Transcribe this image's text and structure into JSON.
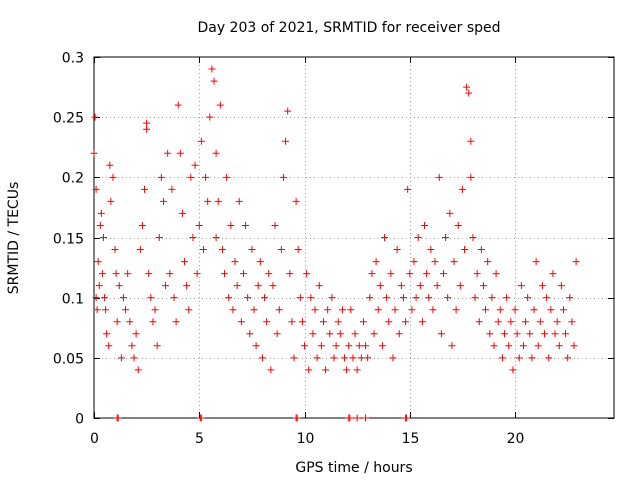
{
  "chart_data": {
    "type": "scatter",
    "title": "Day 203 of 2021, SRMTID for receiver sped",
    "xlabel": "GPS time / hours",
    "ylabel": "SRMTID / TECUs",
    "xlim": [
      0,
      24.7
    ],
    "ylim": [
      0,
      0.3
    ],
    "xticks": [
      0,
      5,
      10,
      15,
      20
    ],
    "xtick_labels": [
      "0",
      "5",
      "10",
      "15",
      "20"
    ],
    "yticks": [
      0,
      0.05,
      0.1,
      0.15,
      0.2,
      0.25,
      0.3
    ],
    "ytick_labels": [
      "0",
      "0.05",
      "0.1",
      "0.15",
      "0.2",
      "0.25",
      "0.3"
    ],
    "grid": true,
    "series": [
      {
        "name": "SRMTID",
        "color": "#ff0000",
        "marker": "plus",
        "x": [
          0.0,
          0.05,
          0.1,
          0.1,
          0.15,
          0.2,
          0.25,
          0.3,
          0.35,
          0.4,
          0.45,
          0.5,
          0.55,
          0.6,
          0.7,
          0.75,
          0.8,
          0.9,
          1.0,
          1.05,
          1.1,
          1.2,
          1.3,
          1.4,
          1.5,
          1.6,
          1.7,
          1.8,
          1.9,
          2.0,
          2.1,
          2.2,
          2.3,
          2.4,
          2.5,
          2.5,
          2.6,
          2.7,
          2.8,
          2.9,
          3.0,
          3.1,
          3.2,
          3.3,
          3.4,
          3.5,
          3.6,
          3.7,
          3.8,
          3.9,
          4.0,
          4.1,
          4.2,
          4.3,
          4.4,
          4.5,
          4.6,
          4.7,
          4.8,
          4.9,
          5.0,
          5.1,
          5.2,
          5.3,
          5.4,
          5.5,
          5.6,
          5.7,
          5.8,
          5.8,
          5.9,
          6.0,
          6.1,
          6.2,
          6.3,
          6.4,
          6.5,
          6.6,
          6.7,
          6.8,
          6.9,
          7.0,
          7.1,
          7.2,
          7.3,
          7.4,
          7.5,
          7.6,
          7.7,
          7.8,
          7.9,
          8.0,
          8.1,
          8.2,
          8.3,
          8.4,
          8.5,
          8.6,
          8.7,
          8.8,
          8.9,
          9.0,
          9.1,
          9.2,
          9.3,
          9.4,
          9.5,
          9.6,
          9.7,
          9.8,
          9.9,
          10.0,
          10.1,
          10.2,
          10.3,
          10.4,
          10.5,
          10.6,
          10.7,
          10.8,
          10.9,
          11.0,
          11.1,
          11.2,
          11.3,
          11.4,
          11.5,
          11.6,
          11.7,
          11.8,
          11.9,
          12.0,
          12.1,
          12.2,
          12.3,
          12.4,
          12.5,
          12.6,
          12.7,
          12.8,
          12.9,
          13.0,
          13.1,
          13.2,
          13.3,
          13.4,
          13.5,
          13.6,
          13.7,
          13.8,
          13.9,
          14.0,
          14.1,
          14.2,
          14.3,
          14.4,
          14.5,
          14.6,
          14.7,
          14.8,
          14.9,
          15.0,
          15.1,
          15.2,
          15.3,
          15.4,
          15.5,
          15.6,
          15.7,
          15.8,
          15.9,
          16.0,
          16.1,
          16.2,
          16.3,
          16.4,
          16.5,
          16.6,
          16.7,
          16.8,
          16.9,
          17.0,
          17.1,
          17.2,
          17.3,
          17.4,
          17.5,
          17.6,
          17.7,
          17.8,
          17.9,
          17.9,
          18.0,
          18.1,
          18.2,
          18.3,
          18.4,
          18.5,
          18.6,
          18.7,
          18.8,
          18.9,
          19.0,
          19.1,
          19.2,
          19.3,
          19.4,
          19.5,
          19.6,
          19.7,
          19.8,
          19.9,
          20.0,
          20.1,
          20.2,
          20.3,
          20.4,
          20.5,
          20.6,
          20.7,
          20.8,
          20.9,
          21.0,
          21.1,
          21.2,
          21.3,
          21.4,
          21.5,
          21.6,
          21.7,
          21.8,
          21.9,
          22.0,
          22.1,
          22.2,
          22.3,
          22.4,
          22.5,
          22.6,
          22.7,
          22.8,
          22.9,
          1.1,
          1.15,
          5.05,
          5.1,
          9.6,
          9.65,
          12.1,
          12.15,
          12.5,
          12.9,
          14.8,
          14.85
        ],
        "y": [
          0.22,
          0.25,
          0.1,
          0.19,
          0.09,
          0.13,
          0.11,
          0.16,
          0.17,
          0.12,
          0.15,
          0.1,
          0.09,
          0.07,
          0.06,
          0.21,
          0.18,
          0.2,
          0.14,
          0.12,
          0.08,
          0.11,
          0.05,
          0.1,
          0.09,
          0.12,
          0.08,
          0.06,
          0.05,
          0.07,
          0.04,
          0.14,
          0.16,
          0.19,
          0.245,
          0.24,
          0.12,
          0.1,
          0.08,
          0.09,
          0.06,
          0.15,
          0.2,
          0.18,
          0.11,
          0.22,
          0.12,
          0.19,
          0.1,
          0.08,
          0.26,
          0.22,
          0.17,
          0.13,
          0.11,
          0.09,
          0.2,
          0.15,
          0.21,
          0.12,
          0.16,
          0.23,
          0.14,
          0.2,
          0.18,
          0.25,
          0.29,
          0.28,
          0.22,
          0.15,
          0.18,
          0.26,
          0.14,
          0.12,
          0.2,
          0.1,
          0.16,
          0.09,
          0.13,
          0.11,
          0.18,
          0.08,
          0.12,
          0.16,
          0.1,
          0.07,
          0.14,
          0.09,
          0.06,
          0.11,
          0.13,
          0.05,
          0.1,
          0.08,
          0.12,
          0.04,
          0.11,
          0.16,
          0.07,
          0.09,
          0.14,
          0.2,
          0.23,
          0.255,
          0.12,
          0.08,
          0.05,
          0.18,
          0.14,
          0.1,
          0.08,
          0.06,
          0.12,
          0.04,
          0.1,
          0.07,
          0.09,
          0.05,
          0.11,
          0.06,
          0.08,
          0.04,
          0.09,
          0.07,
          0.1,
          0.05,
          0.06,
          0.08,
          0.07,
          0.09,
          0.05,
          0.04,
          0.06,
          0.09,
          0.05,
          0.07,
          0.04,
          0.06,
          0.05,
          0.08,
          0.06,
          0.05,
          0.1,
          0.12,
          0.07,
          0.13,
          0.09,
          0.11,
          0.06,
          0.15,
          0.1,
          0.08,
          0.12,
          0.05,
          0.09,
          0.14,
          0.07,
          0.11,
          0.1,
          0.08,
          0.19,
          0.12,
          0.09,
          0.13,
          0.1,
          0.15,
          0.11,
          0.08,
          0.16,
          0.12,
          0.1,
          0.14,
          0.09,
          0.13,
          0.11,
          0.2,
          0.07,
          0.12,
          0.15,
          0.1,
          0.17,
          0.06,
          0.13,
          0.09,
          0.16,
          0.11,
          0.19,
          0.14,
          0.275,
          0.27,
          0.23,
          0.2,
          0.15,
          0.1,
          0.12,
          0.08,
          0.14,
          0.11,
          0.09,
          0.13,
          0.07,
          0.1,
          0.06,
          0.12,
          0.08,
          0.09,
          0.05,
          0.07,
          0.1,
          0.06,
          0.08,
          0.04,
          0.09,
          0.07,
          0.05,
          0.11,
          0.06,
          0.08,
          0.1,
          0.07,
          0.05,
          0.09,
          0.13,
          0.06,
          0.08,
          0.11,
          0.07,
          0.1,
          0.05,
          0.09,
          0.12,
          0.07,
          0.08,
          0.06,
          0.11,
          0.09,
          0.07,
          0.05,
          0.1,
          0.08,
          0.06,
          0.13,
          0.0,
          0.0,
          0.0,
          0.0,
          0.0,
          0.0,
          0.0,
          0.0,
          0.0,
          0.0,
          0.0,
          0.0
        ]
      }
    ]
  }
}
